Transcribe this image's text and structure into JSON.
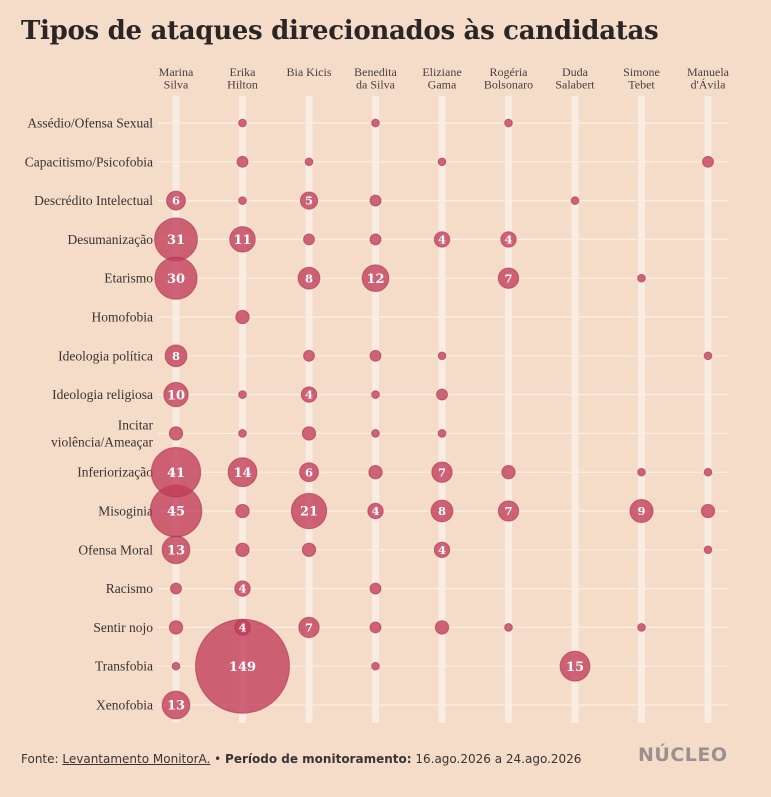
{
  "title": "Tipos de ataques direcionados às candidatas",
  "footer": {
    "source_prefix": "Fonte: ",
    "source_link": "Levantamento MonitorA.",
    "separator": " • ",
    "period_label": "Período de monitoramento:",
    "period_value": " 16.ago.2026 a 24.ago.2026"
  },
  "logo": "NÚCLEO",
  "colors": {
    "background": "#f4dcc8",
    "bubble": "#c23c5a",
    "bubble_stroke": "#a8304a",
    "column_track": "#f9ece3",
    "row_line": "#fbeee4"
  },
  "chart_data": {
    "type": "bubble-matrix",
    "title": "Tipos de ataques direcionados às candidatas",
    "columns": [
      [
        "Marina",
        "Silva"
      ],
      [
        "Erika",
        "Hilton"
      ],
      [
        "Bia Kicis"
      ],
      [
        "Benedita",
        "da Silva"
      ],
      [
        "Eliziane",
        "Gama"
      ],
      [
        "Rogéria",
        "Bolsonaro"
      ],
      [
        "Duda",
        "Salabert"
      ],
      [
        "Simone",
        "Tebet"
      ],
      [
        "Manuela",
        "d'Ávila"
      ]
    ],
    "rows": [
      [
        "Assédio/Ofensa Sexual"
      ],
      [
        "Capacitismo/Psicofobia"
      ],
      [
        "Descrédito Intelectual"
      ],
      [
        "Desumanização"
      ],
      [
        "Etarismo"
      ],
      [
        "Homofobia"
      ],
      [
        "Ideologia política"
      ],
      [
        "Ideologia religiosa"
      ],
      [
        "Incitar",
        "violência/Ameaçar"
      ],
      [
        "Inferiorização"
      ],
      [
        "Misoginia"
      ],
      [
        "Ofensa Moral"
      ],
      [
        "Racismo"
      ],
      [
        "Sentir nojo"
      ],
      [
        "Transfobia"
      ],
      [
        "Xenofobia"
      ]
    ],
    "cells": [
      {
        "row": 0,
        "col": 1,
        "value": 1,
        "label": ""
      },
      {
        "row": 0,
        "col": 3,
        "value": 1,
        "label": ""
      },
      {
        "row": 0,
        "col": 5,
        "value": 1,
        "label": ""
      },
      {
        "row": 1,
        "col": 1,
        "value": 2,
        "label": ""
      },
      {
        "row": 1,
        "col": 2,
        "value": 1,
        "label": ""
      },
      {
        "row": 1,
        "col": 4,
        "value": 1,
        "label": ""
      },
      {
        "row": 1,
        "col": 8,
        "value": 2,
        "label": ""
      },
      {
        "row": 2,
        "col": 0,
        "value": 6,
        "label": "6"
      },
      {
        "row": 2,
        "col": 1,
        "value": 1,
        "label": ""
      },
      {
        "row": 2,
        "col": 2,
        "value": 5,
        "label": "5"
      },
      {
        "row": 2,
        "col": 3,
        "value": 2,
        "label": ""
      },
      {
        "row": 2,
        "col": 6,
        "value": 1,
        "label": ""
      },
      {
        "row": 3,
        "col": 0,
        "value": 31,
        "label": "31"
      },
      {
        "row": 3,
        "col": 1,
        "value": 11,
        "label": "11"
      },
      {
        "row": 3,
        "col": 2,
        "value": 2,
        "label": ""
      },
      {
        "row": 3,
        "col": 3,
        "value": 2,
        "label": ""
      },
      {
        "row": 3,
        "col": 4,
        "value": 4,
        "label": "4"
      },
      {
        "row": 3,
        "col": 5,
        "value": 4,
        "label": "4"
      },
      {
        "row": 4,
        "col": 0,
        "value": 30,
        "label": "30"
      },
      {
        "row": 4,
        "col": 2,
        "value": 8,
        "label": "8"
      },
      {
        "row": 4,
        "col": 3,
        "value": 12,
        "label": "12"
      },
      {
        "row": 4,
        "col": 5,
        "value": 7,
        "label": "7"
      },
      {
        "row": 4,
        "col": 7,
        "value": 1,
        "label": ""
      },
      {
        "row": 5,
        "col": 1,
        "value": 3,
        "label": ""
      },
      {
        "row": 6,
        "col": 0,
        "value": 8,
        "label": "8"
      },
      {
        "row": 6,
        "col": 2,
        "value": 2,
        "label": ""
      },
      {
        "row": 6,
        "col": 3,
        "value": 2,
        "label": ""
      },
      {
        "row": 6,
        "col": 4,
        "value": 1,
        "label": ""
      },
      {
        "row": 6,
        "col": 8,
        "value": 1,
        "label": ""
      },
      {
        "row": 7,
        "col": 0,
        "value": 10,
        "label": "10"
      },
      {
        "row": 7,
        "col": 1,
        "value": 1,
        "label": ""
      },
      {
        "row": 7,
        "col": 2,
        "value": 4,
        "label": "4"
      },
      {
        "row": 7,
        "col": 3,
        "value": 1,
        "label": ""
      },
      {
        "row": 7,
        "col": 4,
        "value": 2,
        "label": ""
      },
      {
        "row": 8,
        "col": 0,
        "value": 3,
        "label": ""
      },
      {
        "row": 8,
        "col": 1,
        "value": 1,
        "label": ""
      },
      {
        "row": 8,
        "col": 2,
        "value": 3,
        "label": ""
      },
      {
        "row": 8,
        "col": 3,
        "value": 1,
        "label": ""
      },
      {
        "row": 8,
        "col": 4,
        "value": 1,
        "label": ""
      },
      {
        "row": 9,
        "col": 0,
        "value": 41,
        "label": "41"
      },
      {
        "row": 9,
        "col": 1,
        "value": 14,
        "label": "14"
      },
      {
        "row": 9,
        "col": 2,
        "value": 6,
        "label": "6"
      },
      {
        "row": 9,
        "col": 3,
        "value": 3,
        "label": ""
      },
      {
        "row": 9,
        "col": 4,
        "value": 7,
        "label": "7"
      },
      {
        "row": 9,
        "col": 5,
        "value": 3,
        "label": ""
      },
      {
        "row": 9,
        "col": 7,
        "value": 1,
        "label": ""
      },
      {
        "row": 9,
        "col": 8,
        "value": 1,
        "label": ""
      },
      {
        "row": 10,
        "col": 0,
        "value": 45,
        "label": "45"
      },
      {
        "row": 10,
        "col": 1,
        "value": 3,
        "label": ""
      },
      {
        "row": 10,
        "col": 2,
        "value": 21,
        "label": "21"
      },
      {
        "row": 10,
        "col": 3,
        "value": 4,
        "label": "4"
      },
      {
        "row": 10,
        "col": 4,
        "value": 8,
        "label": "8"
      },
      {
        "row": 10,
        "col": 5,
        "value": 7,
        "label": "7"
      },
      {
        "row": 10,
        "col": 7,
        "value": 9,
        "label": "9"
      },
      {
        "row": 10,
        "col": 8,
        "value": 3,
        "label": ""
      },
      {
        "row": 11,
        "col": 0,
        "value": 13,
        "label": "13"
      },
      {
        "row": 11,
        "col": 1,
        "value": 3,
        "label": ""
      },
      {
        "row": 11,
        "col": 2,
        "value": 3,
        "label": ""
      },
      {
        "row": 11,
        "col": 4,
        "value": 4,
        "label": "4"
      },
      {
        "row": 11,
        "col": 8,
        "value": 1,
        "label": ""
      },
      {
        "row": 12,
        "col": 0,
        "value": 2,
        "label": ""
      },
      {
        "row": 12,
        "col": 1,
        "value": 4,
        "label": "4"
      },
      {
        "row": 12,
        "col": 3,
        "value": 2,
        "label": ""
      },
      {
        "row": 13,
        "col": 0,
        "value": 3,
        "label": ""
      },
      {
        "row": 13,
        "col": 1,
        "value": 4,
        "label": "4"
      },
      {
        "row": 13,
        "col": 2,
        "value": 7,
        "label": "7"
      },
      {
        "row": 13,
        "col": 3,
        "value": 2,
        "label": ""
      },
      {
        "row": 13,
        "col": 4,
        "value": 3,
        "label": ""
      },
      {
        "row": 13,
        "col": 5,
        "value": 1,
        "label": ""
      },
      {
        "row": 13,
        "col": 7,
        "value": 1,
        "label": ""
      },
      {
        "row": 14,
        "col": 0,
        "value": 1,
        "label": ""
      },
      {
        "row": 14,
        "col": 1,
        "value": 149,
        "label": "149"
      },
      {
        "row": 14,
        "col": 3,
        "value": 1,
        "label": ""
      },
      {
        "row": 14,
        "col": 6,
        "value": 15,
        "label": "15"
      },
      {
        "row": 15,
        "col": 0,
        "value": 13,
        "label": "13"
      }
    ]
  }
}
